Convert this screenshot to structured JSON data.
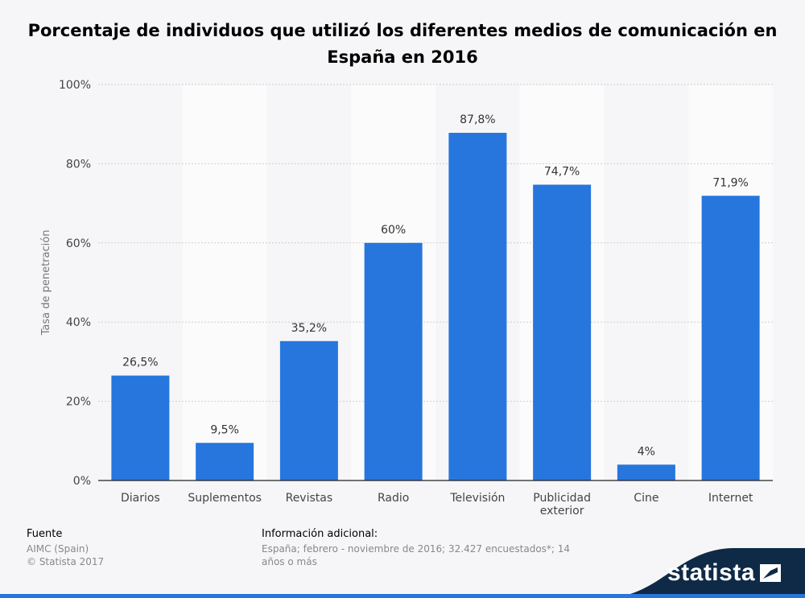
{
  "title": "Porcentaje de individuos que utilizó los diferentes medios de comunicación en España en 2016",
  "footer": {
    "source_label": "Fuente",
    "source_lines": [
      "AIMC (Spain)",
      "© Statista 2017"
    ],
    "info_label": "Información adicional:",
    "info_text": "España; febrero - noviembre de 2016; 32.427 encuestados*; 14 años o más"
  },
  "brand": {
    "name": "statista"
  },
  "colors": {
    "bar": "#2776dd",
    "background": "#f6f6f8",
    "band": "#fbfbfc",
    "grid": "#cfcfcf"
  },
  "chart_data": {
    "type": "bar",
    "categories": [
      "Diarios",
      "Suplementos",
      "Revistas",
      "Radio",
      "Televisión",
      "Publicidad exterior",
      "Cine",
      "Internet"
    ],
    "values": [
      26.5,
      9.5,
      35.2,
      60,
      87.8,
      74.7,
      4,
      71.9
    ],
    "value_labels": [
      "26,5%",
      "9,5%",
      "35,2%",
      "60%",
      "87,8%",
      "74,7%",
      "4%",
      "71,9%"
    ],
    "title": "Porcentaje de individuos que utilizó los diferentes medios de comunicación en España en 2016",
    "xlabel": "",
    "ylabel": "Tasa de penetración",
    "ylim": [
      0,
      100
    ],
    "yticks": [
      0,
      20,
      40,
      60,
      80,
      100
    ],
    "ytick_labels": [
      "0%",
      "20%",
      "40%",
      "60%",
      "80%",
      "100%"
    ],
    "grid": true,
    "legend": "none"
  }
}
